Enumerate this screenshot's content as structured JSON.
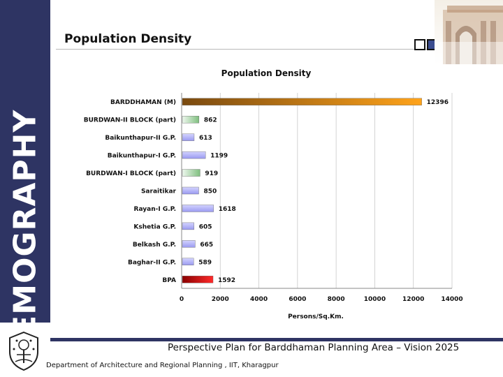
{
  "slide": {
    "title": "Population Density",
    "side_label": "DEMOGRAPHY",
    "footer_title": "Perspective Plan for Barddhaman Planning Area – Vision 2025",
    "footer_dept": "Department of Architecture and Regional Planning , IIT, Kharagpur"
  },
  "colors": {
    "sidebar": "#2e3463",
    "bar_default": "#a8a8f0",
    "bar_green": "#8fc48f",
    "bar_municipality": "#b88a20",
    "bar_bpa": "#cc1010"
  },
  "chart_data": {
    "type": "bar",
    "orientation": "horizontal",
    "title": "Population Density",
    "xlabel": "Persons/Sq.Km.",
    "xlim": [
      0,
      14000
    ],
    "xticks": [
      "0",
      "2000",
      "4000",
      "6000",
      "8000",
      "10000",
      "12000",
      "14000"
    ],
    "grid": true,
    "categories": [
      "BARDDHAMAN (M)",
      "BURDWAN-II BLOCK (part)",
      "Baikunthapur-II G.P.",
      "Baikunthapur-I G.P.",
      "BURDWAN-I BLOCK (part)",
      "Saraitikar",
      "Rayan-I G.P.",
      "Kshetia G.P.",
      "Belkash G.P.",
      "Baghar-II G.P.",
      "BPA"
    ],
    "values": [
      12396,
      862,
      613,
      1199,
      919,
      850,
      1618,
      605,
      665,
      589,
      1592
    ],
    "value_labels": [
      "12396",
      "862",
      "613",
      "1199",
      "919",
      "850",
      "1618",
      "605",
      "665",
      "589",
      "1592"
    ],
    "bar_styles": [
      "municipality",
      "green",
      "default",
      "default",
      "green",
      "default",
      "default",
      "default",
      "default",
      "default",
      "bpa"
    ]
  }
}
